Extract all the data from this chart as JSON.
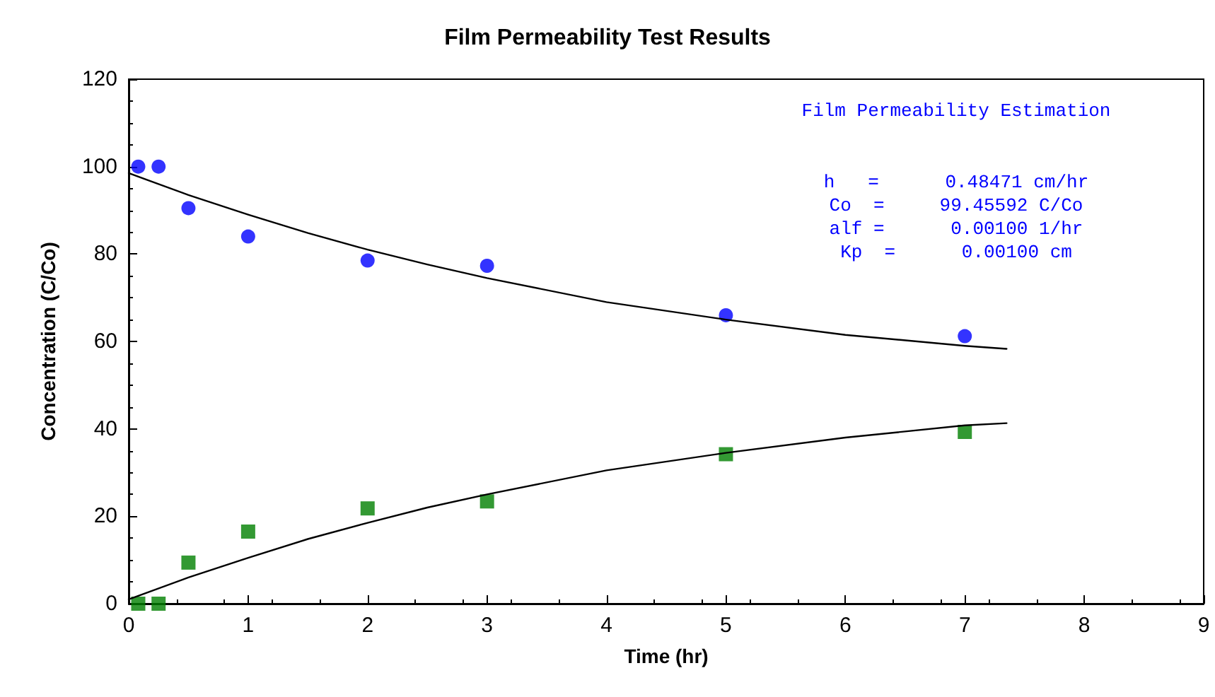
{
  "chart_data": {
    "type": "scatter",
    "title": "Film Permeability Test Results",
    "xlabel": "Time (hr)",
    "ylabel": "Concentration (C/Co)",
    "xlim": [
      0,
      9
    ],
    "xticks": [
      0,
      1,
      2,
      3,
      4,
      5,
      6,
      7,
      8,
      9
    ],
    "ylim": [
      0,
      120
    ],
    "yticks": [
      0,
      20,
      40,
      60,
      80,
      100,
      120
    ],
    "grid": false,
    "annotations": [
      "Film Permeability Estimation",
      "h   =      0.48471 cm/hr",
      "Co  =     99.45592 C/Co",
      "alf =      0.00100 1/hr",
      "Kp  =      0.00100 cm"
    ],
    "series": [
      {
        "marker": "circle",
        "color": "#0000ff",
        "x": [
          0.08,
          0.25,
          0.5,
          1,
          2,
          3,
          5,
          7
        ],
        "values": [
          100,
          100,
          90.5,
          84,
          78.5,
          77.3,
          66,
          61.2
        ]
      },
      {
        "marker": "square",
        "color": "#008000",
        "x": [
          0.08,
          0.25,
          0.5,
          1,
          2,
          3,
          5,
          7
        ],
        "values": [
          0,
          0,
          9.4,
          16.5,
          21.8,
          23.4,
          34.2,
          39.3
        ]
      },
      {
        "type": "line",
        "marker": "none",
        "line_style": "solid",
        "color": "#000000",
        "x": [
          0,
          0.5,
          1,
          1.5,
          2,
          2.5,
          3,
          4,
          5,
          6,
          7,
          7.35
        ],
        "values": [
          98.5,
          93.5,
          89,
          84.8,
          81,
          77.6,
          74.5,
          69,
          65,
          61.5,
          59,
          58.3
        ]
      },
      {
        "type": "line",
        "marker": "none",
        "line_style": "solid",
        "color": "#000000",
        "x": [
          0,
          0.5,
          1,
          1.5,
          2,
          2.5,
          3,
          4,
          5,
          6,
          7,
          7.35
        ],
        "values": [
          1,
          6,
          10.5,
          14.8,
          18.5,
          22,
          25,
          30.5,
          34.5,
          38,
          40.8,
          41.3
        ]
      }
    ]
  }
}
